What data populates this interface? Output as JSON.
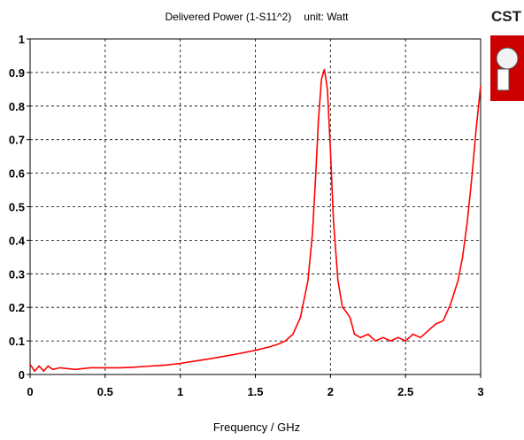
{
  "chart_data": {
    "type": "line",
    "title": "Delivered Power (1-S11^2)",
    "unit_label": "unit: Watt",
    "xlabel": "Frequency / GHz",
    "ylabel": "",
    "xlim": [
      0,
      3
    ],
    "ylim": [
      0,
      1
    ],
    "xticks": [
      "0",
      "0.5",
      "1",
      "1.5",
      "2",
      "2.5",
      "3"
    ],
    "yticks": [
      "0",
      "0.1",
      "0.2",
      "0.3",
      "0.4",
      "0.5",
      "0.6",
      "0.7",
      "0.8",
      "0.9",
      "1"
    ],
    "grid": true,
    "line_color": "#ff0000",
    "series": [
      {
        "x": [
          0,
          0.03,
          0.06,
          0.09,
          0.12,
          0.15,
          0.2,
          0.3,
          0.4,
          0.5,
          0.6,
          0.7,
          0.8,
          0.9,
          1.0,
          1.1,
          1.2,
          1.3,
          1.4,
          1.5,
          1.6,
          1.65,
          1.7,
          1.75,
          1.8,
          1.85,
          1.88,
          1.9,
          1.92,
          1.94,
          1.96,
          1.98,
          2.0,
          2.02,
          2.05,
          2.08,
          2.1,
          2.13,
          2.16,
          2.2,
          2.25,
          2.3,
          2.35,
          2.4,
          2.45,
          2.5,
          2.55,
          2.6,
          2.65,
          2.7,
          2.75,
          2.8,
          2.85,
          2.88,
          2.91,
          2.94,
          2.97,
          3.0
        ],
        "y": [
          0.03,
          0.01,
          0.025,
          0.01,
          0.025,
          0.015,
          0.02,
          0.015,
          0.02,
          0.02,
          0.02,
          0.022,
          0.025,
          0.028,
          0.033,
          0.04,
          0.047,
          0.055,
          0.063,
          0.072,
          0.083,
          0.09,
          0.1,
          0.12,
          0.17,
          0.28,
          0.42,
          0.58,
          0.76,
          0.88,
          0.91,
          0.85,
          0.67,
          0.46,
          0.28,
          0.2,
          0.19,
          0.17,
          0.12,
          0.11,
          0.12,
          0.1,
          0.11,
          0.1,
          0.11,
          0.1,
          0.12,
          0.11,
          0.13,
          0.15,
          0.16,
          0.21,
          0.28,
          0.35,
          0.45,
          0.58,
          0.73,
          0.86
        ]
      }
    ]
  },
  "logo": {
    "text": "CST",
    "color": "#cc0000"
  }
}
